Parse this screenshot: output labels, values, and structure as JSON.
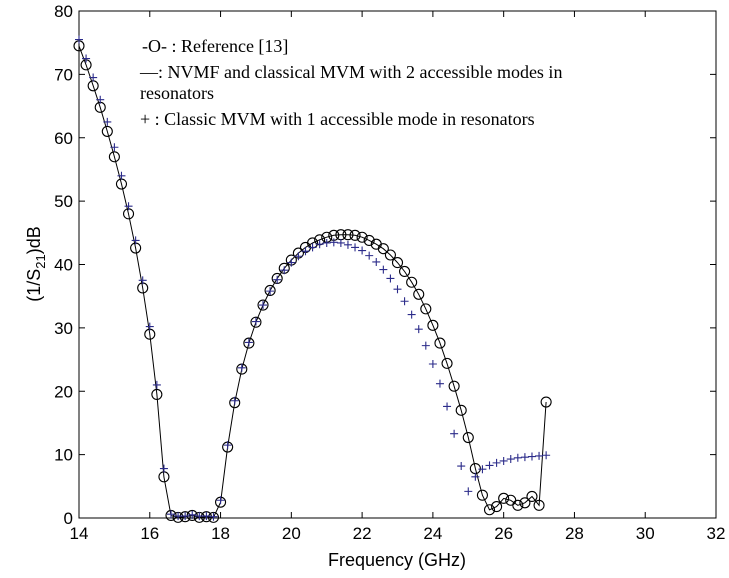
{
  "chart_data": {
    "type": "line",
    "xlabel": "Frequency (GHz)",
    "ylabel_parts": [
      "(1/S",
      "21",
      ")dB"
    ],
    "xlim": [
      14,
      32
    ],
    "ylim": [
      0,
      80
    ],
    "xticks": [
      14,
      16,
      18,
      20,
      22,
      24,
      26,
      28,
      30,
      32
    ],
    "yticks": [
      0,
      10,
      20,
      30,
      40,
      50,
      60,
      70,
      80
    ],
    "colors": {
      "reference": "#000000",
      "nvmf": "#000000",
      "classic": "#2b2b8a"
    },
    "legend": {
      "placement": "top-center",
      "entries": [
        {
          "lines": [
            "-O- : Reference [13]"
          ]
        },
        {
          "lines": [
            "—:  NVMF and classical MVM with 2 accessible modes in",
            "resonators"
          ]
        },
        {
          "lines": [
            "+ :  Classic MVM with 1  accessible mode in resonators"
          ]
        }
      ]
    },
    "series": [
      {
        "key": "reference",
        "marker": "circle",
        "points": [
          [
            14.0,
            74.5
          ],
          [
            14.2,
            71.5
          ],
          [
            14.4,
            68.2
          ],
          [
            14.6,
            64.8
          ],
          [
            14.8,
            61.0
          ],
          [
            15.0,
            57.0
          ],
          [
            15.2,
            52.7
          ],
          [
            15.4,
            48.0
          ],
          [
            15.6,
            42.6
          ],
          [
            15.8,
            36.3
          ],
          [
            16.0,
            29.0
          ],
          [
            16.2,
            19.5
          ],
          [
            16.4,
            6.5
          ],
          [
            16.6,
            0.4
          ],
          [
            16.8,
            0.1
          ],
          [
            17.0,
            0.2
          ],
          [
            17.2,
            0.4
          ],
          [
            17.4,
            0.1
          ],
          [
            17.6,
            0.2
          ],
          [
            17.8,
            0.1
          ],
          [
            18.0,
            2.5
          ],
          [
            18.2,
            11.2
          ],
          [
            18.4,
            18.2
          ],
          [
            18.6,
            23.5
          ],
          [
            18.8,
            27.6
          ],
          [
            19.0,
            30.9
          ],
          [
            19.2,
            33.6
          ],
          [
            19.4,
            35.9
          ],
          [
            19.6,
            37.8
          ],
          [
            19.8,
            39.4
          ],
          [
            20.0,
            40.7
          ],
          [
            20.2,
            41.8
          ],
          [
            20.4,
            42.7
          ],
          [
            20.6,
            43.4
          ],
          [
            20.8,
            43.9
          ],
          [
            21.0,
            44.3
          ],
          [
            21.2,
            44.6
          ],
          [
            21.4,
            44.7
          ],
          [
            21.6,
            44.7
          ],
          [
            21.8,
            44.6
          ],
          [
            22.0,
            44.3
          ],
          [
            22.2,
            43.8
          ],
          [
            22.4,
            43.2
          ],
          [
            22.6,
            42.5
          ],
          [
            22.8,
            41.5
          ],
          [
            23.0,
            40.3
          ],
          [
            23.2,
            38.9
          ],
          [
            23.4,
            37.2
          ],
          [
            23.6,
            35.3
          ],
          [
            23.8,
            33.0
          ],
          [
            24.0,
            30.4
          ],
          [
            24.2,
            27.6
          ],
          [
            24.4,
            24.4
          ],
          [
            24.6,
            20.8
          ],
          [
            24.8,
            17.0
          ],
          [
            25.0,
            12.7
          ],
          [
            25.2,
            7.8
          ],
          [
            25.4,
            3.6
          ],
          [
            25.6,
            1.3
          ],
          [
            25.8,
            1.8
          ],
          [
            26.0,
            3.1
          ],
          [
            26.2,
            2.8
          ],
          [
            26.4,
            2.0
          ],
          [
            26.6,
            2.4
          ],
          [
            26.8,
            3.4
          ],
          [
            27.0,
            2.0
          ],
          [
            27.2,
            18.3
          ]
        ]
      },
      {
        "key": "nvmf",
        "marker": "none",
        "points": [
          [
            14.0,
            74.5
          ],
          [
            14.2,
            71.5
          ],
          [
            14.4,
            68.2
          ],
          [
            14.6,
            64.8
          ],
          [
            14.8,
            61.0
          ],
          [
            15.0,
            57.0
          ],
          [
            15.2,
            52.7
          ],
          [
            15.4,
            48.0
          ],
          [
            15.6,
            42.6
          ],
          [
            15.8,
            36.3
          ],
          [
            16.0,
            29.0
          ],
          [
            16.2,
            19.5
          ],
          [
            16.4,
            6.5
          ],
          [
            16.6,
            0.4
          ],
          [
            16.8,
            0.1
          ],
          [
            17.0,
            0.2
          ],
          [
            17.2,
            0.4
          ],
          [
            17.4,
            0.1
          ],
          [
            17.6,
            0.2
          ],
          [
            17.8,
            0.1
          ],
          [
            18.0,
            2.5
          ],
          [
            18.2,
            11.2
          ],
          [
            18.4,
            18.2
          ],
          [
            18.6,
            23.5
          ],
          [
            18.8,
            27.6
          ],
          [
            19.0,
            30.9
          ],
          [
            19.2,
            33.6
          ],
          [
            19.4,
            35.9
          ],
          [
            19.6,
            37.8
          ],
          [
            19.8,
            39.4
          ],
          [
            20.0,
            40.7
          ],
          [
            20.2,
            41.8
          ],
          [
            20.4,
            42.7
          ],
          [
            20.6,
            43.4
          ],
          [
            20.8,
            43.9
          ],
          [
            21.0,
            44.3
          ],
          [
            21.2,
            44.6
          ],
          [
            21.4,
            44.7
          ],
          [
            21.6,
            44.7
          ],
          [
            21.8,
            44.6
          ],
          [
            22.0,
            44.3
          ],
          [
            22.2,
            43.8
          ],
          [
            22.4,
            43.2
          ],
          [
            22.6,
            42.5
          ],
          [
            22.8,
            41.5
          ],
          [
            23.0,
            40.3
          ],
          [
            23.2,
            38.9
          ],
          [
            23.4,
            37.2
          ],
          [
            23.6,
            35.3
          ],
          [
            23.8,
            33.0
          ],
          [
            24.0,
            30.4
          ],
          [
            24.2,
            27.6
          ],
          [
            24.4,
            24.4
          ],
          [
            24.6,
            20.8
          ],
          [
            24.8,
            17.0
          ],
          [
            25.0,
            12.7
          ],
          [
            25.2,
            7.8
          ],
          [
            25.4,
            3.6
          ],
          [
            25.6,
            1.3
          ],
          [
            25.8,
            1.8
          ],
          [
            26.0,
            3.1
          ],
          [
            26.2,
            2.8
          ],
          [
            26.4,
            2.0
          ],
          [
            26.6,
            2.4
          ],
          [
            26.8,
            3.4
          ],
          [
            27.0,
            2.0
          ],
          [
            27.2,
            18.3
          ]
        ]
      },
      {
        "key": "classic",
        "marker": "plus",
        "points": [
          [
            14.0,
            75.5
          ],
          [
            14.2,
            72.5
          ],
          [
            14.4,
            69.5
          ],
          [
            14.6,
            66.0
          ],
          [
            14.8,
            62.5
          ],
          [
            15.0,
            58.5
          ],
          [
            15.2,
            54.0
          ],
          [
            15.4,
            49.2
          ],
          [
            15.6,
            43.8
          ],
          [
            15.8,
            37.5
          ],
          [
            16.0,
            30.2
          ],
          [
            16.2,
            21.0
          ],
          [
            16.4,
            7.8
          ],
          [
            16.6,
            0.6
          ],
          [
            16.8,
            0.3
          ],
          [
            17.0,
            0.3
          ],
          [
            17.2,
            0.5
          ],
          [
            17.4,
            0.3
          ],
          [
            17.6,
            0.3
          ],
          [
            17.8,
            0.2
          ],
          [
            18.0,
            2.8
          ],
          [
            18.2,
            11.5
          ],
          [
            18.4,
            18.5
          ],
          [
            18.6,
            23.7
          ],
          [
            18.8,
            27.7
          ],
          [
            19.0,
            31.0
          ],
          [
            19.2,
            33.6
          ],
          [
            19.4,
            35.8
          ],
          [
            19.6,
            37.6
          ],
          [
            19.8,
            39.1
          ],
          [
            20.0,
            40.3
          ],
          [
            20.2,
            41.3
          ],
          [
            20.4,
            42.1
          ],
          [
            20.6,
            42.7
          ],
          [
            20.8,
            43.2
          ],
          [
            21.0,
            43.4
          ],
          [
            21.2,
            43.5
          ],
          [
            21.4,
            43.4
          ],
          [
            21.6,
            43.1
          ],
          [
            21.8,
            42.7
          ],
          [
            22.0,
            42.2
          ],
          [
            22.2,
            41.4
          ],
          [
            22.4,
            40.4
          ],
          [
            22.6,
            39.2
          ],
          [
            22.8,
            37.8
          ],
          [
            23.0,
            36.1
          ],
          [
            23.2,
            34.2
          ],
          [
            23.4,
            32.1
          ],
          [
            23.6,
            29.8
          ],
          [
            23.8,
            27.2
          ],
          [
            24.0,
            24.3
          ],
          [
            24.2,
            21.2
          ],
          [
            24.4,
            17.6
          ],
          [
            24.6,
            13.3
          ],
          [
            24.8,
            8.2
          ],
          [
            25.0,
            4.2
          ],
          [
            25.2,
            6.5
          ],
          [
            25.4,
            7.7
          ],
          [
            25.6,
            8.3
          ],
          [
            25.8,
            8.7
          ],
          [
            26.0,
            9.0
          ],
          [
            26.2,
            9.3
          ],
          [
            26.4,
            9.5
          ],
          [
            26.6,
            9.6
          ],
          [
            26.8,
            9.7
          ],
          [
            27.0,
            9.8
          ],
          [
            27.2,
            9.9
          ]
        ]
      }
    ]
  }
}
